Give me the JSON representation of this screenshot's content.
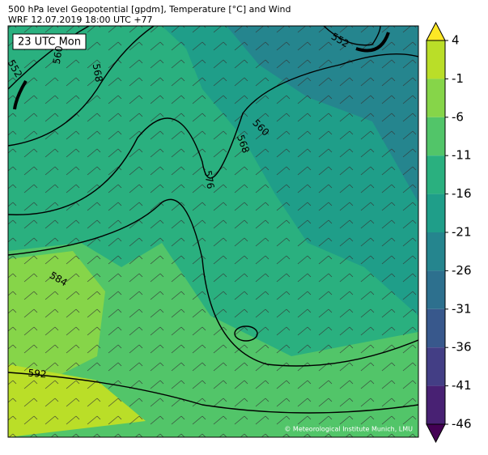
{
  "header": {
    "line1": "500 hPa level Geopotential [gpdm], Temperature [°C] and Wind",
    "line2": "WRF 12.07.2019 18:00 UTC +77"
  },
  "map": {
    "time_label": "23 UTC Mon",
    "contour_labels": [
      "552",
      "560",
      "568",
      "552",
      "560",
      "568",
      "576",
      "584",
      "592"
    ],
    "credit": "© Meteorological Institute Munich, LMU"
  },
  "colorbar": {
    "ticks": [
      4,
      -1,
      -6,
      -11,
      -16,
      -21,
      -26,
      -31,
      -36,
      -41,
      -46
    ],
    "colors": [
      "#bade28",
      "#86d549",
      "#52c569",
      "#2ab07f",
      "#1f9e89",
      "#25858e",
      "#2d708e",
      "#38588c",
      "#433e85",
      "#482173"
    ],
    "over_color": "#fde725",
    "under_color": "#440154"
  }
}
